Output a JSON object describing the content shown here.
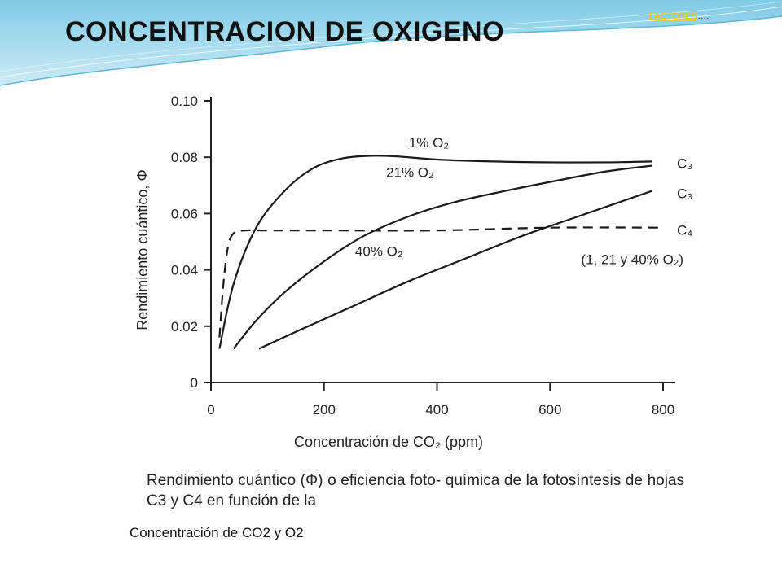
{
  "slide": {
    "title": "CONCENTRACION DE OXIGENO",
    "factors_link": "FACTORES",
    "factors_suffix": "…..",
    "footer_caption": "Concentración de CO2 y O2",
    "figure_caption": "Rendimiento cuántico (Φ) o eficiencia foto- química de la fotosíntesis de hojas C3 y C4 en función de la"
  },
  "chart_data": {
    "type": "line",
    "xlabel": "Concentración de CO₂ (ppm)",
    "ylabel": "Rendimiento cuántico, Φ",
    "xlim": [
      0,
      800
    ],
    "ylim": [
      0,
      0.1
    ],
    "xticks": [
      0,
      200,
      400,
      600,
      800
    ],
    "yticks": [
      0,
      0.02,
      0.04,
      0.06,
      0.08,
      0.1
    ],
    "ytick_labels": [
      "0",
      "0.02",
      "0.04",
      "0.06",
      "0.08",
      "0.10"
    ],
    "series": [
      {
        "name": "C3 1% O2",
        "label": "1% O₂",
        "end_label": "C₃",
        "style": "solid",
        "x": [
          15,
          40,
          80,
          130,
          180,
          230,
          280,
          330,
          400,
          500,
          600,
          700,
          780
        ],
        "y": [
          0.012,
          0.035,
          0.055,
          0.068,
          0.076,
          0.0795,
          0.0805,
          0.0803,
          0.0792,
          0.0785,
          0.0782,
          0.0782,
          0.0785
        ]
      },
      {
        "name": "C3 21% O2",
        "label": "21% O₂",
        "end_label": "C₃",
        "style": "solid",
        "x": [
          40,
          80,
          130,
          200,
          270,
          350,
          430,
          520,
          620,
          700,
          780
        ],
        "y": [
          0.012,
          0.022,
          0.032,
          0.043,
          0.052,
          0.059,
          0.064,
          0.068,
          0.072,
          0.075,
          0.077
        ]
      },
      {
        "name": "C3 40% O2",
        "label": "40% O₂",
        "end_label": "C₃",
        "style": "solid",
        "x": [
          85,
          150,
          250,
          350,
          450,
          550,
          650,
          780
        ],
        "y": [
          0.012,
          0.018,
          0.027,
          0.036,
          0.044,
          0.052,
          0.059,
          0.068
        ]
      },
      {
        "name": "C4 (1, 21 y 40% O2)",
        "label": "(1, 21 y 40% O₂)",
        "end_label": "C₄",
        "style": "dashed",
        "x": [
          15,
          22,
          30,
          40,
          60,
          100,
          200,
          400,
          600,
          800
        ],
        "y": [
          0.016,
          0.035,
          0.048,
          0.053,
          0.054,
          0.054,
          0.054,
          0.054,
          0.055,
          0.055
        ]
      }
    ],
    "grid": false,
    "legend": "inline labels"
  },
  "colors": {
    "banner_top": "#9fd8ec",
    "banner_light": "#d9f1f9",
    "banner_line": "#7fc4de",
    "factors_link": "#f5c400"
  }
}
